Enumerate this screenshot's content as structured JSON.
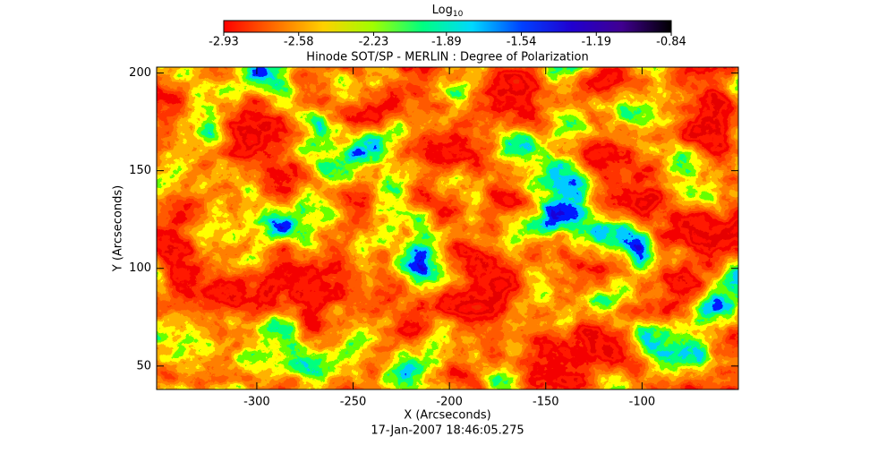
{
  "chart_data": {
    "type": "heatmap",
    "title": "Hinode SOT/SP - MERLIN : Degree of Polarization",
    "xlabel": "X (Arcseconds)",
    "ylabel": "Y (Arcseconds)",
    "annotation": "17-Jan-2007 18:46:05.275",
    "xlim": [
      -352,
      -50
    ],
    "ylim": [
      38,
      203
    ],
    "xticks": [
      -300,
      -250,
      -200,
      -150,
      -100
    ],
    "yticks": [
      50,
      100,
      150,
      200
    ],
    "colorbar": {
      "label": "Log",
      "label_subscript": "10",
      "lim": [
        -2.93,
        -0.84
      ],
      "ticks": [
        -2.93,
        -2.58,
        -2.23,
        -1.89,
        -1.54,
        -1.19,
        -0.84
      ],
      "colormap": [
        "#ff0000",
        "#ff6a00",
        "#ffd000",
        "#a0ff00",
        "#00ff80",
        "#00d8ff",
        "#0040ff",
        "#2000d0",
        "#400090",
        "#000000"
      ]
    }
  }
}
